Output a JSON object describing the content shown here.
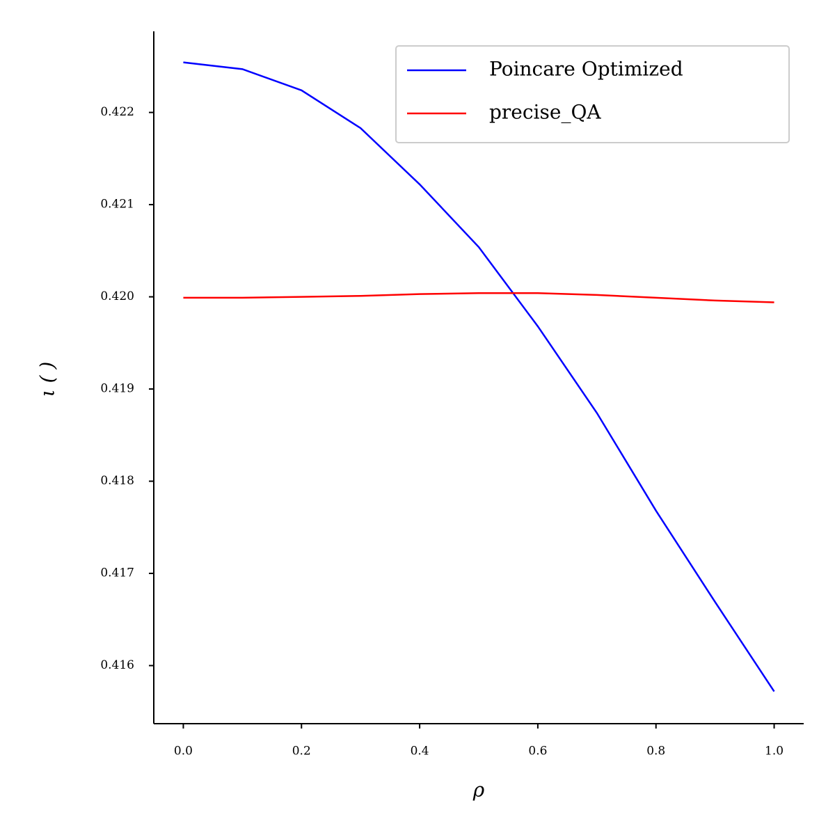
{
  "chart_data": {
    "type": "line",
    "xlabel": "ρ",
    "ylabel": "ι ( )",
    "x": [
      0,
      0.1,
      0.2,
      0.3,
      0.4,
      0.5,
      0.6,
      0.7,
      0.8,
      0.9,
      1.0
    ],
    "series": [
      {
        "name": "Poincare Optimized",
        "color": "#0000ff",
        "values": [
          0.422543,
          0.42247,
          0.42224,
          0.42183,
          0.42122,
          0.42054,
          0.41968,
          0.41874,
          0.41768,
          0.41669,
          0.41572
        ]
      },
      {
        "name": "precise_QA",
        "color": "#ff0000",
        "values": [
          0.41999,
          0.41999,
          0.42,
          0.42001,
          0.42003,
          0.42004,
          0.42004,
          0.42002,
          0.41999,
          0.41996,
          0.41994
        ]
      }
    ],
    "xlim": [
      -0.05,
      1.05
    ],
    "ylim": [
      0.41537,
      0.42288
    ],
    "xticks": [
      {
        "value": 0,
        "label": "0.0"
      },
      0.2,
      0.4,
      0.6,
      0.8,
      {
        "value": 1,
        "label": "1.0"
      }
    ],
    "yticks": [
      0.416,
      0.417,
      0.418,
      0.419,
      {
        "value": 0.42,
        "label": "0.420"
      },
      0.421,
      0.422
    ],
    "legend": "upper right",
    "grid": false
  }
}
